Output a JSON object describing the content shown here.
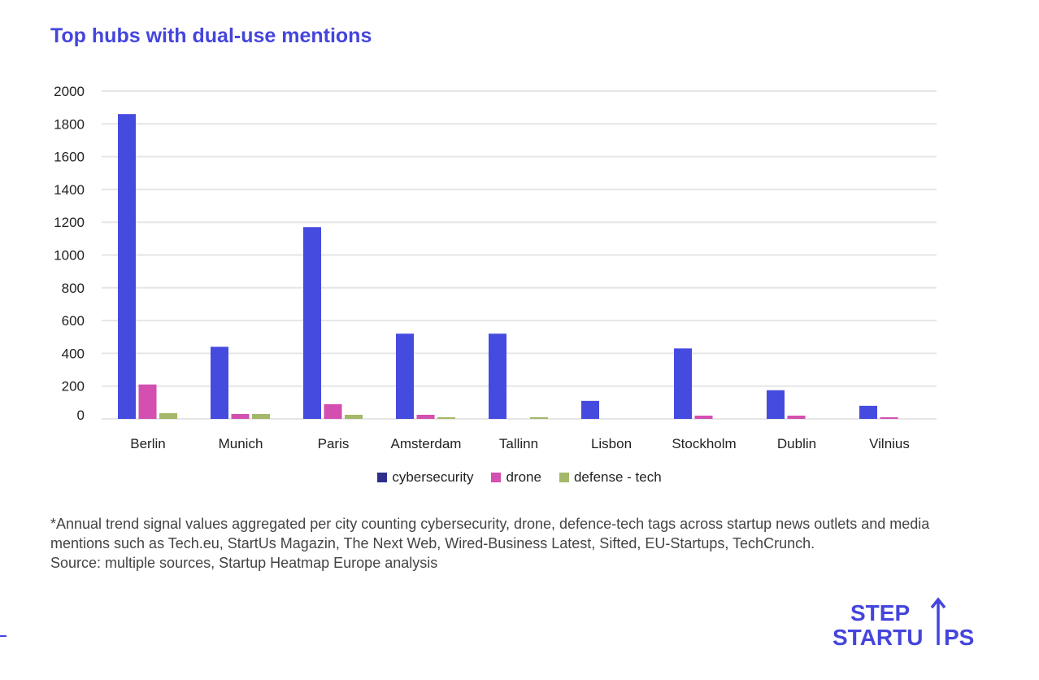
{
  "title": "Top hubs with dual-use mentions",
  "chart_data": {
    "type": "bar",
    "title": "Top hubs with dual-use mentions",
    "xlabel": "",
    "ylabel": "",
    "ylim": [
      0,
      2000
    ],
    "yticks": [
      0,
      200,
      400,
      600,
      800,
      1000,
      1200,
      1400,
      1600,
      1800,
      2000
    ],
    "grid": true,
    "legend_position": "bottom",
    "categories": [
      "Berlin",
      "Munich",
      "Paris",
      "Amsterdam",
      "Tallinn",
      "Lisbon",
      "Stockholm",
      "Dublin",
      "Vilnius"
    ],
    "series": [
      {
        "name": "cybersecurity",
        "color": "#454bdf",
        "legend_color": "#2e2e8c",
        "values": [
          1860,
          440,
          1170,
          520,
          520,
          110,
          430,
          175,
          80
        ]
      },
      {
        "name": "drone",
        "color": "#d34fb0",
        "legend_color": "#d34fb0",
        "values": [
          210,
          30,
          90,
          25,
          0,
          0,
          20,
          20,
          10
        ]
      },
      {
        "name": "defense - tech",
        "color": "#a3b868",
        "legend_color": "#a3b868",
        "values": [
          35,
          30,
          25,
          10,
          10,
          0,
          0,
          0,
          0
        ]
      }
    ]
  },
  "note": "*Annual trend signal values aggregated per city counting cybersecurity, drone, defence-tech tags across startup news outlets and media mentions such as Tech.eu, StartUs Magazin, The Next Web, Wired-Business Latest, Sifted, EU-Startups, TechCrunch.",
  "source": "Source: multiple sources, Startup Heatmap Europe analysis",
  "logo": {
    "line1": "STEP",
    "line2": "STARTUPS",
    "color": "#4545dd"
  }
}
